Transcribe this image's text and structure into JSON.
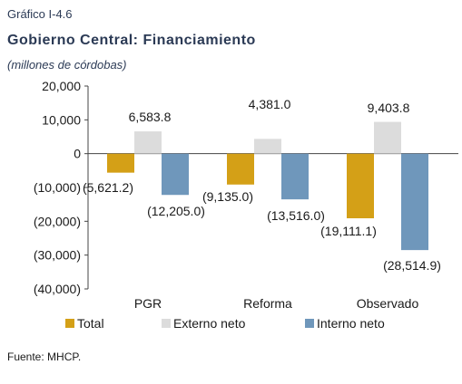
{
  "header": {
    "figure_label": "Gráfico I-4.6",
    "title": "Gobierno Central: Financiamiento",
    "subtitle": "(millones de córdobas)"
  },
  "footer": {
    "source": "Fuente: MHCP."
  },
  "colors": {
    "total": "#D4A017",
    "externo": "#DCDCDC",
    "interno": "#6F97BB"
  },
  "chart_data": {
    "type": "bar",
    "categories": [
      "PGR",
      "Reforma",
      "Observado"
    ],
    "series": [
      {
        "name": "Total",
        "values": [
          -5621.2,
          -9135.0,
          -19111.1
        ],
        "labels": [
          "(5,621.2)",
          "(9,135.0)",
          "(19,111.1)"
        ]
      },
      {
        "name": "Externo neto",
        "values": [
          6583.8,
          4381.0,
          9403.8
        ],
        "labels": [
          "6,583.8",
          "4,381.0",
          "9,403.8"
        ]
      },
      {
        "name": "Interno neto",
        "values": [
          -12205.0,
          -13516.0,
          -28514.9
        ],
        "labels": [
          "(12,205.0)",
          "(13,516.0)",
          "(28,514.9)"
        ]
      }
    ],
    "ylim": [
      -40000,
      20000
    ],
    "yticks": [
      20000,
      10000,
      0,
      -10000,
      -20000,
      -30000,
      -40000
    ],
    "ytick_labels": [
      "20,000",
      "10,000",
      "0",
      "(10,000)",
      "(20,000)",
      "(30,000)",
      "(40,000)"
    ],
    "legend": "bottom",
    "grid": false
  }
}
